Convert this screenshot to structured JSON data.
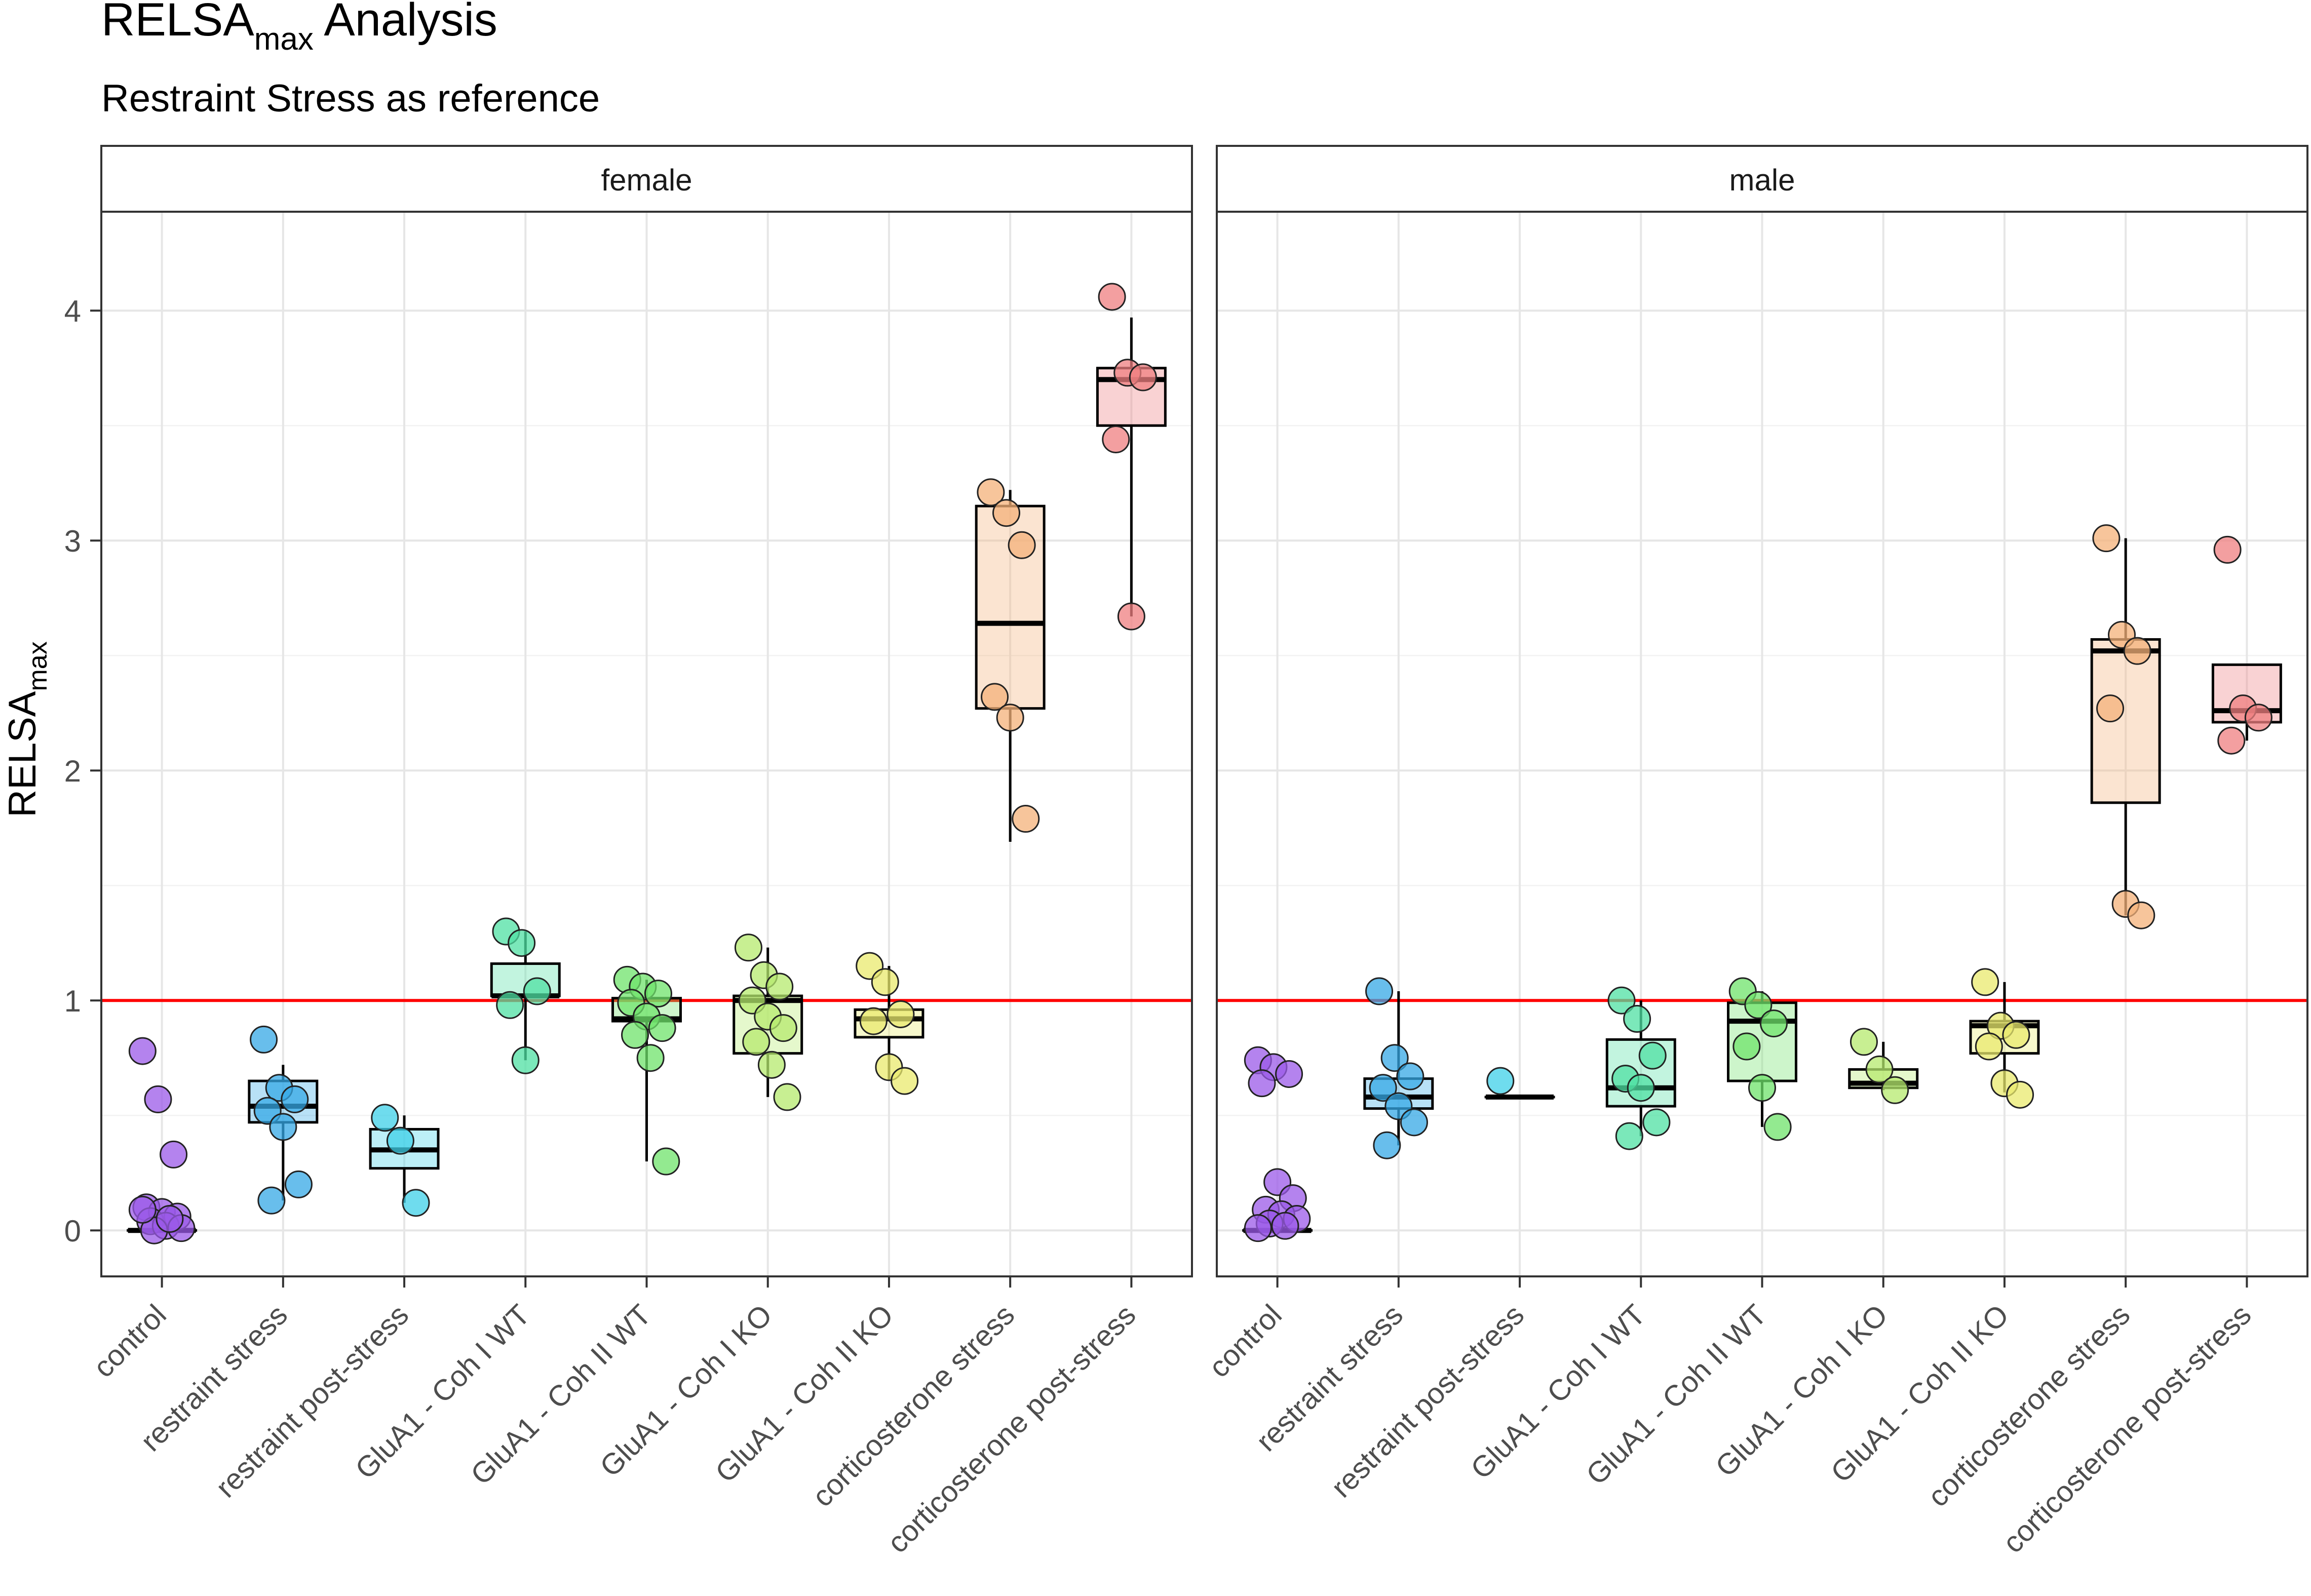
{
  "chart_data": {
    "type": "boxplot",
    "title_main": "RELSA",
    "title_sub": "max",
    "title_rest": " Analysis",
    "subtitle": "Restraint Stress as reference",
    "ylabel_main": "RELSA",
    "ylabel_sub": "max",
    "xlabel": "",
    "ylim": [
      -0.2,
      4.43
    ],
    "yticks": [
      0,
      1,
      2,
      3,
      4
    ],
    "yticklabels": [
      "0",
      "1",
      "2",
      "3",
      "4"
    ],
    "reference_line": 1,
    "reference_color": "#ff0000",
    "grid": true,
    "legend": "none",
    "categories": [
      "control",
      "restraint stress",
      "restraint post-stress",
      "GluA1 - Coh I WT",
      "GluA1 - Coh II WT",
      "GluA1 - Coh I KO",
      "GluA1 - Coh II KO",
      "corticosterone stress",
      "corticosterone post-stress"
    ],
    "colors": [
      "#9b59e8",
      "#35a8e6",
      "#3fd0e8",
      "#4fe0a3",
      "#6fe36b",
      "#b5ea6e",
      "#e9ea6e",
      "#f4b27a",
      "#ef7f80"
    ],
    "panels": [
      {
        "name": "female",
        "groups": [
          {
            "q1": 0.0,
            "median": 0.0,
            "q3": 0.0,
            "wlow": 0.0,
            "whigh": 0.0,
            "points": [
              0.78,
              0.57,
              0.33,
              0.1,
              0.08,
              0.06,
              0.04,
              0.02,
              0.01,
              0.0,
              0.05,
              0.09
            ]
          },
          {
            "q1": 0.47,
            "median": 0.54,
            "q3": 0.65,
            "wlow": 0.13,
            "whigh": 0.72,
            "points": [
              0.83,
              0.62,
              0.57,
              0.52,
              0.45,
              0.2,
              0.13
            ]
          },
          {
            "q1": 0.27,
            "median": 0.35,
            "q3": 0.44,
            "wlow": 0.12,
            "whigh": 0.5,
            "points": [
              0.49,
              0.39,
              0.12
            ]
          },
          {
            "q1": 1.02,
            "median": 1.02,
            "q3": 1.16,
            "wlow": 0.74,
            "whigh": 1.3,
            "points": [
              1.3,
              1.25,
              1.04,
              0.98,
              0.74
            ]
          },
          {
            "q1": 0.91,
            "median": 0.92,
            "q3": 1.01,
            "wlow": 0.3,
            "whigh": 1.09,
            "points": [
              1.09,
              1.06,
              1.03,
              0.99,
              0.93,
              0.88,
              0.85,
              0.75,
              0.3
            ]
          },
          {
            "q1": 0.77,
            "median": 1.0,
            "q3": 1.02,
            "wlow": 0.58,
            "whigh": 1.23,
            "points": [
              1.23,
              1.11,
              1.06,
              1.0,
              0.93,
              0.88,
              0.82,
              0.72,
              0.58
            ]
          },
          {
            "q1": 0.84,
            "median": 0.92,
            "q3": 0.96,
            "wlow": 0.65,
            "whigh": 1.15,
            "points": [
              1.15,
              1.08,
              0.94,
              0.91,
              0.71,
              0.65
            ]
          },
          {
            "q1": 2.27,
            "median": 2.64,
            "q3": 3.15,
            "wlow": 1.69,
            "whigh": 3.22,
            "points": [
              3.21,
              3.12,
              2.98,
              2.32,
              2.23,
              1.79
            ]
          },
          {
            "q1": 3.5,
            "median": 3.7,
            "q3": 3.75,
            "wlow": 2.67,
            "whigh": 3.97,
            "points": [
              4.06,
              3.73,
              3.71,
              3.44,
              2.67
            ]
          }
        ]
      },
      {
        "name": "male",
        "groups": [
          {
            "q1": 0.0,
            "median": 0.0,
            "q3": 0.0,
            "wlow": 0.0,
            "whigh": 0.0,
            "points": [
              0.74,
              0.71,
              0.68,
              0.64,
              0.21,
              0.14,
              0.09,
              0.07,
              0.05,
              0.03,
              0.02,
              0.01
            ]
          },
          {
            "q1": 0.53,
            "median": 0.58,
            "q3": 0.66,
            "wlow": 0.37,
            "whigh": 1.04,
            "points": [
              1.04,
              0.75,
              0.67,
              0.62,
              0.54,
              0.47,
              0.37
            ]
          },
          {
            "q1": 0.58,
            "median": 0.58,
            "q3": 0.58,
            "wlow": 0.58,
            "whigh": 0.58,
            "points": [
              0.65
            ]
          },
          {
            "q1": 0.54,
            "median": 0.62,
            "q3": 0.83,
            "wlow": 0.41,
            "whigh": 1.0,
            "points": [
              1.0,
              0.92,
              0.76,
              0.66,
              0.62,
              0.47,
              0.41
            ]
          },
          {
            "q1": 0.65,
            "median": 0.91,
            "q3": 0.99,
            "wlow": 0.45,
            "whigh": 1.04,
            "points": [
              1.04,
              0.98,
              0.9,
              0.8,
              0.62,
              0.45
            ]
          },
          {
            "q1": 0.62,
            "median": 0.64,
            "q3": 0.7,
            "wlow": 0.61,
            "whigh": 0.82,
            "points": [
              0.82,
              0.7,
              0.61
            ]
          },
          {
            "q1": 0.77,
            "median": 0.89,
            "q3": 0.91,
            "wlow": 0.6,
            "whigh": 1.08,
            "points": [
              1.08,
              0.89,
              0.85,
              0.8,
              0.64,
              0.59
            ]
          },
          {
            "q1": 1.86,
            "median": 2.52,
            "q3": 2.57,
            "wlow": 1.37,
            "whigh": 3.01,
            "points": [
              3.01,
              2.59,
              2.52,
              2.27,
              1.42,
              1.37
            ]
          },
          {
            "q1": 2.21,
            "median": 2.26,
            "q3": 2.46,
            "wlow": 2.13,
            "whigh": 2.46,
            "points": [
              2.96,
              2.27,
              2.23,
              2.13
            ]
          }
        ]
      }
    ]
  }
}
